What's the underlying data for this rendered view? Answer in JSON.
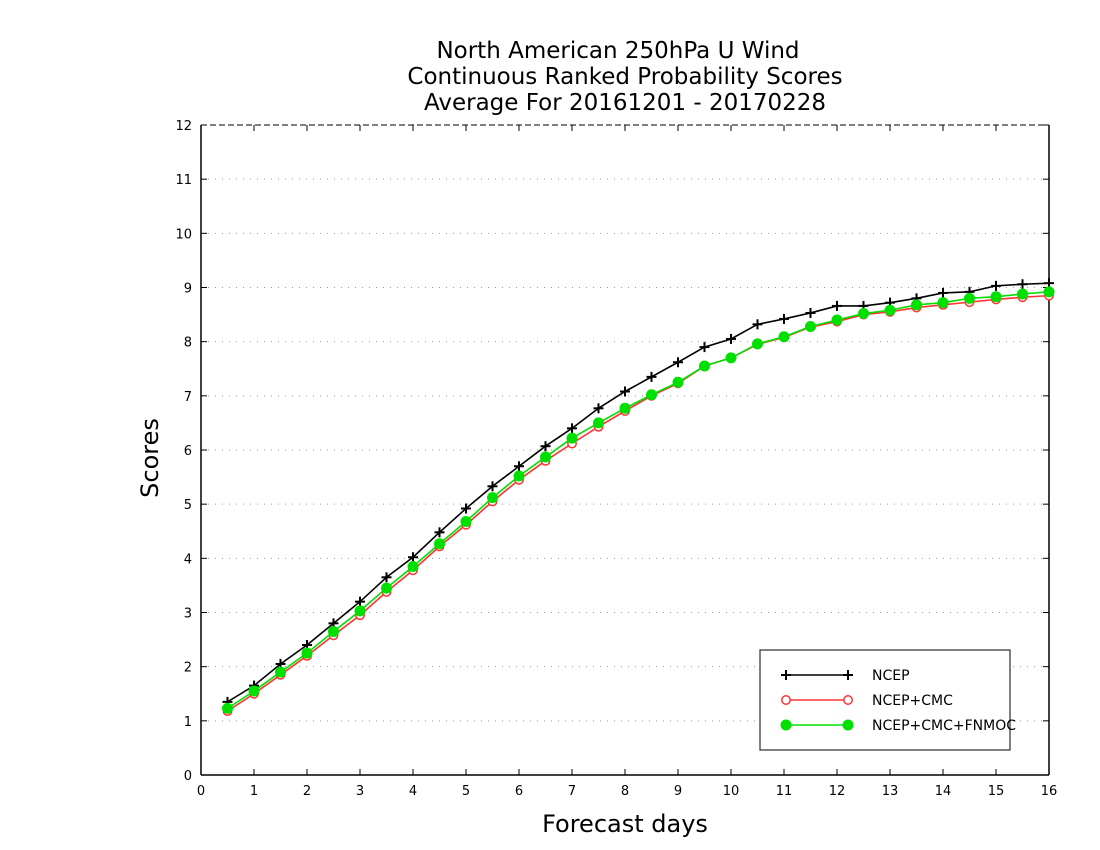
{
  "chart_data": {
    "type": "line",
    "title": [
      "North American 250hPa U Wind",
      "Continuous Ranked Probability Scores",
      "Average For 20161201 - 20170228"
    ],
    "xlabel": "Forecast days",
    "ylabel": "Scores",
    "xlim": [
      0,
      16
    ],
    "ylim": [
      0,
      12
    ],
    "xticks": [
      0,
      1,
      2,
      3,
      4,
      5,
      6,
      7,
      8,
      9,
      10,
      11,
      12,
      13,
      14,
      15,
      16
    ],
    "yticks": [
      0,
      1,
      2,
      3,
      4,
      5,
      6,
      7,
      8,
      9,
      10,
      11,
      12
    ],
    "grid": "horizontal dotted",
    "legend_position": "bottom-right",
    "x": [
      0.5,
      1.0,
      1.5,
      2.0,
      2.5,
      3.0,
      3.5,
      4.0,
      4.5,
      5.0,
      5.5,
      6.0,
      6.5,
      7.0,
      7.5,
      8.0,
      8.5,
      9.0,
      9.5,
      10.0,
      10.5,
      11.0,
      11.5,
      12.0,
      12.5,
      13.0,
      13.5,
      14.0,
      14.5,
      15.0,
      15.5,
      16.0
    ],
    "series": [
      {
        "name": "NCEP",
        "color": "#000000",
        "marker": "plus",
        "values": [
          1.35,
          1.65,
          2.05,
          2.4,
          2.8,
          3.2,
          3.65,
          4.02,
          4.48,
          4.92,
          5.33,
          5.7,
          6.07,
          6.4,
          6.77,
          7.08,
          7.35,
          7.62,
          7.9,
          8.05,
          8.32,
          8.42,
          8.53,
          8.66,
          8.66,
          8.72,
          8.8,
          8.9,
          8.92,
          9.03,
          9.06,
          9.08
        ]
      },
      {
        "name": "NCEP+CMC",
        "color": "#ff3333",
        "marker": "open-circle",
        "values": [
          1.18,
          1.5,
          1.85,
          2.2,
          2.58,
          2.95,
          3.38,
          3.78,
          4.22,
          4.62,
          5.05,
          5.45,
          5.8,
          6.12,
          6.43,
          6.72,
          7.0,
          7.23,
          7.55,
          7.7,
          7.95,
          8.08,
          8.27,
          8.37,
          8.5,
          8.55,
          8.63,
          8.68,
          8.73,
          8.78,
          8.82,
          8.85
        ]
      },
      {
        "name": "NCEP+CMC+FNMOC",
        "color": "#00e000",
        "marker": "filled-circle",
        "values": [
          1.23,
          1.55,
          1.9,
          2.25,
          2.65,
          3.03,
          3.45,
          3.85,
          4.27,
          4.68,
          5.12,
          5.52,
          5.87,
          6.22,
          6.5,
          6.77,
          7.02,
          7.25,
          7.55,
          7.7,
          7.96,
          8.09,
          8.28,
          8.4,
          8.52,
          8.58,
          8.68,
          8.72,
          8.8,
          8.83,
          8.88,
          8.92
        ]
      }
    ]
  }
}
